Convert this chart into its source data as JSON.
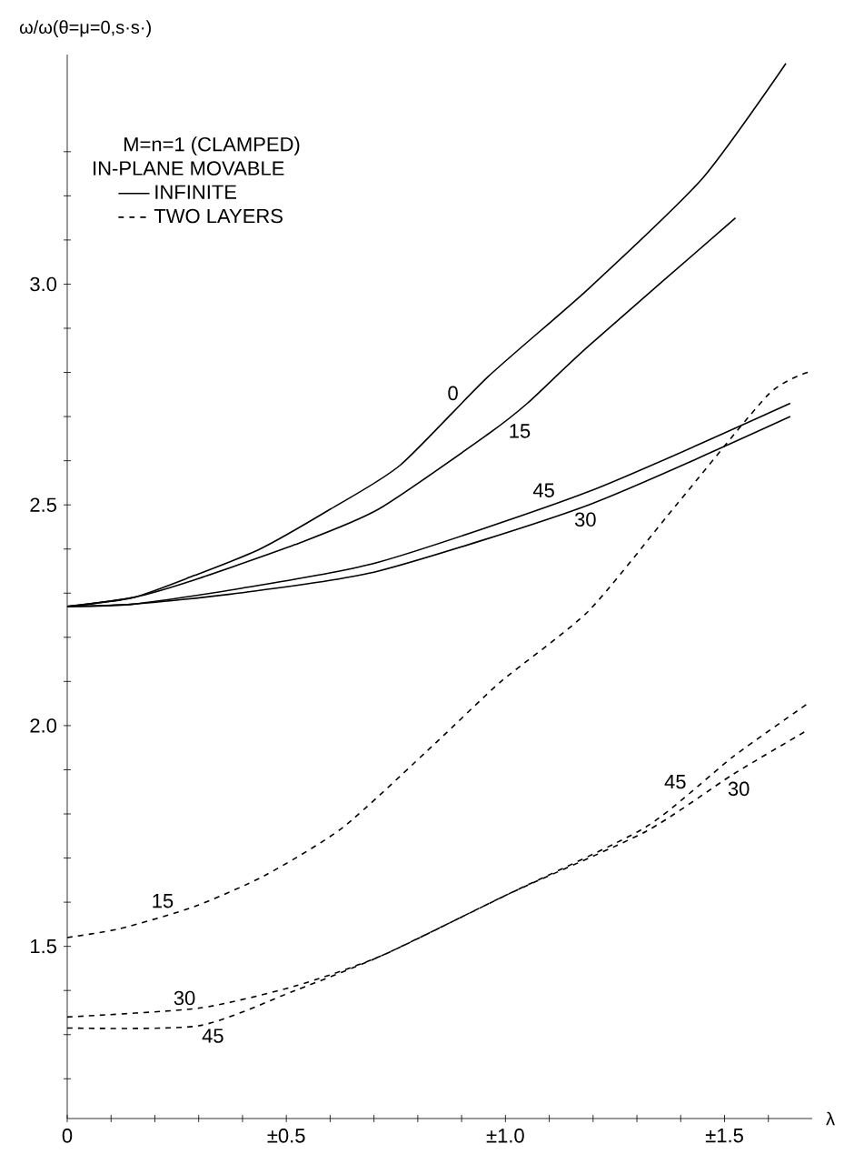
{
  "chart_data": {
    "type": "line",
    "xlabel": "λ",
    "ylabel": "ω/ω(θ=μ=0,s·s·)",
    "legend_title": "M=n=1 (CLAMPED)",
    "legend": "top left",
    "xlim": [
      0,
      1.7
    ],
    "ylim": [
      1.11,
      3.52
    ],
    "xticks": [
      {
        "value": 0,
        "label": "0"
      },
      {
        "value": 0.1,
        "label": null
      },
      {
        "value": 0.2,
        "label": null
      },
      {
        "value": 0.3,
        "label": null
      },
      {
        "value": 0.4,
        "label": null
      },
      {
        "value": 0.5,
        "label": "±0.5"
      },
      {
        "value": 0.6,
        "label": null
      },
      {
        "value": 0.7,
        "label": null
      },
      {
        "value": 0.8,
        "label": null
      },
      {
        "value": 0.9,
        "label": null
      },
      {
        "value": 1.0,
        "label": "±1.0"
      },
      {
        "value": 1.1,
        "label": null
      },
      {
        "value": 1.2,
        "label": null
      },
      {
        "value": 1.3,
        "label": null
      },
      {
        "value": 1.4,
        "label": null
      },
      {
        "value": 1.5,
        "label": "±1.5"
      },
      {
        "value": 1.6,
        "label": null
      }
    ],
    "yticks": [
      {
        "value": 1.2,
        "label": null
      },
      {
        "value": 1.3,
        "label": null
      },
      {
        "value": 1.4,
        "label": null
      },
      {
        "value": 1.5,
        "label": "1.5"
      },
      {
        "value": 1.6,
        "label": null
      },
      {
        "value": 1.7,
        "label": null
      },
      {
        "value": 1.8,
        "label": null
      },
      {
        "value": 1.9,
        "label": null
      },
      {
        "value": 2.0,
        "label": "2.0"
      },
      {
        "value": 2.1,
        "label": null
      },
      {
        "value": 2.2,
        "label": null
      },
      {
        "value": 2.3,
        "label": null
      },
      {
        "value": 2.4,
        "label": null
      },
      {
        "value": 2.5,
        "label": "2.5"
      },
      {
        "value": 2.6,
        "label": null
      },
      {
        "value": 2.7,
        "label": null
      },
      {
        "value": 2.8,
        "label": null
      },
      {
        "value": 2.9,
        "label": null
      },
      {
        "value": 3.0,
        "label": "3.0"
      },
      {
        "value": 3.1,
        "label": null
      },
      {
        "value": 3.2,
        "label": null
      },
      {
        "value": 3.3,
        "label": null
      }
    ],
    "series": [
      {
        "name": "INFINITE",
        "color": "#000000",
        "line_style": "solid",
        "x": [
          0,
          0.15,
          0.29,
          0.44,
          0.6,
          0.76,
          0.96,
          1.19,
          1.45,
          1.64
        ],
        "values": [
          2.27,
          2.29,
          2.34,
          2.4,
          2.49,
          2.59,
          2.79,
          2.99,
          3.24,
          3.5
        ]
      },
      {
        "color": "#000000",
        "line_style": "solid",
        "x": [
          0,
          0.15,
          0.29,
          0.52,
          0.71,
          0.96,
          1.05,
          1.19,
          1.525
        ],
        "values": [
          2.27,
          2.29,
          2.33,
          2.41,
          2.49,
          2.66,
          2.73,
          2.86,
          3.15
        ]
      },
      {
        "color": "#000000",
        "line_style": "solid",
        "x": [
          0,
          0.15,
          0.39,
          0.71,
          1.19,
          1.65
        ],
        "values": [
          2.27,
          2.275,
          2.31,
          2.37,
          2.53,
          2.73
        ]
      },
      {
        "color": "#000000",
        "line_style": "solid",
        "x": [
          0,
          0.15,
          0.39,
          0.71,
          1.19,
          1.65
        ],
        "values": [
          2.27,
          2.275,
          2.3,
          2.35,
          2.5,
          2.7
        ]
      },
      {
        "name": "TWO LAYERS",
        "color": "#000000",
        "line_style": "dashed",
        "x": [
          0,
          0.12,
          0.29,
          0.45,
          0.63,
          0.84,
          0.99,
          1.19,
          1.39,
          1.6,
          1.69
        ],
        "values": [
          1.52,
          1.54,
          1.59,
          1.66,
          1.77,
          1.96,
          2.1,
          2.26,
          2.5,
          2.75,
          2.8
        ]
      },
      {
        "color": "#000000",
        "line_style": "dashed",
        "x": [
          0,
          0.3,
          0.52,
          0.72,
          1.01,
          1.32,
          1.52,
          1.69
        ],
        "values": [
          1.34,
          1.36,
          1.41,
          1.48,
          1.62,
          1.76,
          1.89,
          1.99
        ]
      },
      {
        "color": "#000000",
        "line_style": "dashed",
        "x": [
          0,
          0.3,
          0.52,
          0.72,
          1.01,
          1.32,
          1.52,
          1.69
        ],
        "values": [
          1.315,
          1.32,
          1.4,
          1.48,
          1.62,
          1.77,
          1.93,
          2.05
        ]
      }
    ],
    "annotations": [
      "IN-PLANE MOVABLE",
      {
        "text": "0",
        "x": 0.9,
        "y": 2.73
      },
      {
        "text": "15",
        "x": 1.0,
        "y": 2.69
      },
      {
        "text": "45",
        "x": 1.12,
        "y": 2.51
      },
      {
        "text": "30",
        "x": 1.15,
        "y": 2.49
      },
      {
        "text": "15",
        "x": 0.25,
        "y": 1.58
      },
      {
        "text": "30",
        "x": 0.3,
        "y": 1.36
      },
      {
        "text": "45",
        "x": 0.3,
        "y": 1.32
      },
      {
        "text": "45",
        "x": 1.42,
        "y": 1.85
      },
      {
        "text": "30",
        "x": 1.5,
        "y": 1.88
      }
    ]
  }
}
